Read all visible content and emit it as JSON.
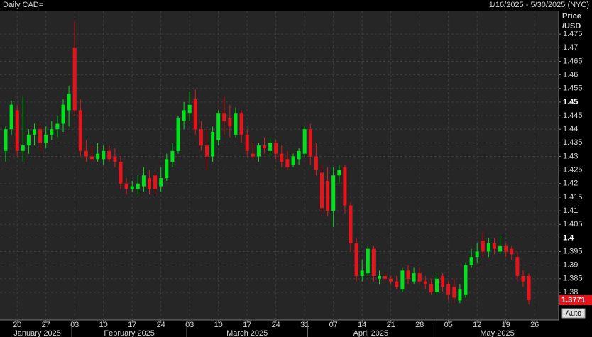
{
  "chart_data": {
    "type": "candlestick",
    "title": "Daily CAD=",
    "date_range": "1/16/2025 - 5/30/2025 (NYC)",
    "y_label": [
      "Price",
      "/USD"
    ],
    "up_color": "#00e31a",
    "down_color": "#e8141c",
    "ylim": [
      1.3698,
      1.4834
    ],
    "yticks": [
      1.38,
      1.385,
      1.39,
      1.395,
      1.4,
      1.405,
      1.41,
      1.415,
      1.42,
      1.425,
      1.43,
      1.435,
      1.44,
      1.445,
      1.45,
      1.455,
      1.46,
      1.465,
      1.47,
      1.475
    ],
    "grid": true,
    "x_groups": [
      {
        "label": "January 2025",
        "categories": [
          null,
          null,
          "20",
          null,
          null,
          null,
          null,
          "27",
          null,
          null,
          null,
          null
        ]
      },
      {
        "label": "February 2025",
        "categories": [
          "03",
          null,
          null,
          null,
          null,
          "10",
          null,
          null,
          null,
          null,
          "17",
          null,
          null,
          null,
          null,
          "24",
          null,
          null,
          null,
          null
        ]
      },
      {
        "label": "March 2025",
        "categories": [
          "03",
          null,
          null,
          null,
          null,
          "10",
          null,
          null,
          null,
          null,
          "17",
          null,
          null,
          null,
          null,
          "24",
          null,
          null,
          null,
          null,
          "31"
        ]
      },
      {
        "label": "April 2025",
        "categories": [
          null,
          null,
          null,
          null,
          "07",
          null,
          null,
          null,
          null,
          "14",
          null,
          null,
          null,
          null,
          "21",
          null,
          null,
          null,
          null,
          "28",
          null,
          null
        ]
      },
      {
        "label": "May 2025",
        "categories": [
          null,
          null,
          "05",
          null,
          null,
          null,
          null,
          "12",
          null,
          null,
          null,
          null,
          "19",
          null,
          null,
          null,
          null,
          "26",
          null,
          null,
          null,
          null
        ]
      }
    ],
    "candles": [
      [
        1.432,
        1.441,
        1.428,
        1.44
      ],
      [
        1.44,
        1.4505,
        1.438,
        1.449
      ],
      [
        1.447,
        1.449,
        1.43,
        1.432
      ],
      [
        1.432,
        1.452,
        1.428,
        1.434
      ],
      [
        1.434,
        1.44,
        1.431,
        1.438
      ],
      [
        1.438,
        1.442,
        1.434,
        1.44
      ],
      [
        1.44,
        1.442,
        1.432,
        1.435
      ],
      [
        1.435,
        1.441,
        1.433,
        1.438
      ],
      [
        1.438,
        1.443,
        1.436,
        1.44
      ],
      [
        1.44,
        1.445,
        1.437,
        1.442
      ],
      [
        1.442,
        1.451,
        1.439,
        1.449
      ],
      [
        1.447,
        1.456,
        1.441,
        1.453
      ],
      [
        1.47,
        1.4795,
        1.445,
        1.447
      ],
      [
        1.447,
        1.451,
        1.43,
        1.432
      ],
      [
        1.432,
        1.436,
        1.428,
        1.43
      ],
      [
        1.43,
        1.434,
        1.428,
        1.429
      ],
      [
        1.429,
        1.435,
        1.428,
        1.431
      ],
      [
        1.429,
        1.434,
        1.427,
        1.432
      ],
      [
        1.432,
        1.434,
        1.428,
        1.429
      ],
      [
        1.43,
        1.433,
        1.426,
        1.428
      ],
      [
        1.428,
        1.43,
        1.418,
        1.42
      ],
      [
        1.42,
        1.422,
        1.416,
        1.418
      ],
      [
        1.418,
        1.421,
        1.417,
        1.419
      ],
      [
        1.418,
        1.423,
        1.416,
        1.42
      ],
      [
        1.419,
        1.426,
        1.417,
        1.423
      ],
      [
        1.422,
        1.425,
        1.416,
        1.418
      ],
      [
        1.423,
        1.424,
        1.416,
        1.418
      ],
      [
        1.419,
        1.426,
        1.417,
        1.422
      ],
      [
        1.422,
        1.431,
        1.421,
        1.429
      ],
      [
        1.428,
        1.435,
        1.426,
        1.432
      ],
      [
        1.432,
        1.445,
        1.431,
        1.444
      ],
      [
        1.443,
        1.45,
        1.44,
        1.447
      ],
      [
        1.446,
        1.454,
        1.443,
        1.449
      ],
      [
        1.451,
        1.4545,
        1.438,
        1.44
      ],
      [
        1.44,
        1.443,
        1.432,
        1.434
      ],
      [
        1.434,
        1.44,
        1.425,
        1.43
      ],
      [
        1.43,
        1.441,
        1.428,
        1.439
      ],
      [
        1.436,
        1.447,
        1.434,
        1.446
      ],
      [
        1.446,
        1.452,
        1.438,
        1.443
      ],
      [
        1.444,
        1.449,
        1.437,
        1.441
      ],
      [
        1.438,
        1.448,
        1.437,
        1.446
      ],
      [
        1.446,
        1.447,
        1.435,
        1.438
      ],
      [
        1.438,
        1.44,
        1.43,
        1.432
      ],
      [
        1.431,
        1.435,
        1.429,
        1.43
      ],
      [
        1.43,
        1.435,
        1.428,
        1.434
      ],
      [
        1.434,
        1.437,
        1.431,
        1.433
      ],
      [
        1.432,
        1.437,
        1.43,
        1.435
      ],
      [
        1.435,
        1.436,
        1.429,
        1.431
      ],
      [
        1.431,
        1.434,
        1.426,
        1.428
      ],
      [
        1.429,
        1.432,
        1.425,
        1.426
      ],
      [
        1.427,
        1.431,
        1.426,
        1.43
      ],
      [
        1.429,
        1.433,
        1.427,
        1.432
      ],
      [
        1.431,
        1.441,
        1.43,
        1.44
      ],
      [
        1.44,
        1.442,
        1.427,
        1.43
      ],
      [
        1.43,
        1.435,
        1.423,
        1.425
      ],
      [
        1.424,
        1.427,
        1.409,
        1.411
      ],
      [
        1.421,
        1.426,
        1.408,
        1.41
      ],
      [
        1.41,
        1.426,
        1.404,
        1.423
      ],
      [
        1.423,
        1.427,
        1.42,
        1.425
      ],
      [
        1.426,
        1.427,
        1.409,
        1.412
      ],
      [
        1.412,
        1.413,
        1.395,
        1.398
      ],
      [
        1.398,
        1.4,
        1.384,
        1.386
      ],
      [
        1.386,
        1.392,
        1.384,
        1.388
      ],
      [
        1.387,
        1.397,
        1.386,
        1.396
      ],
      [
        1.396,
        1.397,
        1.384,
        1.386
      ],
      [
        1.385,
        1.388,
        1.383,
        1.386
      ],
      [
        1.386,
        1.387,
        1.384,
        1.385
      ],
      [
        1.385,
        1.386,
        1.383,
        1.384
      ],
      [
        1.384,
        1.386,
        1.381,
        1.382
      ],
      [
        1.381,
        1.389,
        1.38,
        1.388
      ],
      [
        1.388,
        1.39,
        1.383,
        1.385
      ],
      [
        1.384,
        1.389,
        1.383,
        1.387
      ],
      [
        1.387,
        1.389,
        1.383,
        1.384
      ],
      [
        1.384,
        1.386,
        1.381,
        1.383
      ],
      [
        1.383,
        1.385,
        1.379,
        1.38
      ],
      [
        1.38,
        1.387,
        1.379,
        1.385
      ],
      [
        1.386,
        1.387,
        1.38,
        1.382
      ],
      [
        1.383,
        1.384,
        1.377,
        1.379
      ],
      [
        1.382,
        1.385,
        1.376,
        1.378
      ],
      [
        1.377,
        1.383,
        1.376,
        1.381
      ],
      [
        1.379,
        1.391,
        1.378,
        1.39
      ],
      [
        1.39,
        1.396,
        1.389,
        1.393
      ],
      [
        1.393,
        1.398,
        1.391,
        1.395
      ],
      [
        1.399,
        1.402,
        1.393,
        1.395
      ],
      [
        1.395,
        1.4,
        1.393,
        1.398
      ],
      [
        1.398,
        1.4,
        1.394,
        1.396
      ],
      [
        1.395,
        1.401,
        1.394,
        1.397
      ],
      [
        1.397,
        1.398,
        1.393,
        1.395
      ],
      [
        1.396,
        1.397,
        1.392,
        1.394
      ],
      [
        1.393,
        1.395,
        1.384,
        1.386
      ],
      [
        1.386,
        1.388,
        1.382,
        1.384
      ],
      [
        1.386,
        1.387,
        1.3755,
        1.3771
      ],
      null,
      null,
      null,
      null,
      null
    ],
    "last_price": 1.3771,
    "scale_button": "Auto"
  }
}
